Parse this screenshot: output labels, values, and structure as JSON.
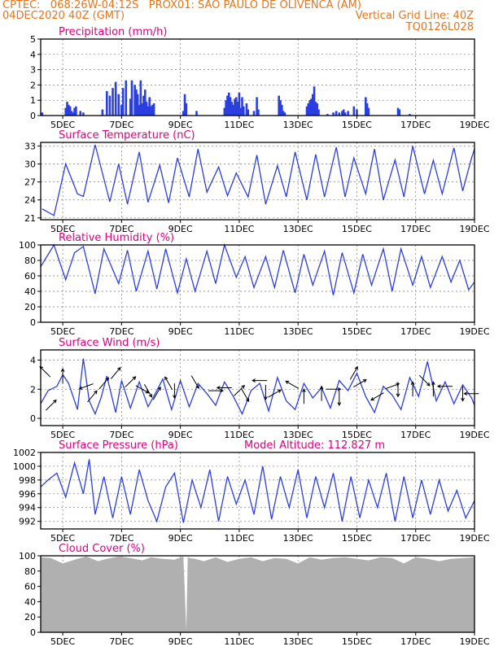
{
  "header": {
    "left_line1": "CPTEC:   068:26W-04:12S   PROX01: SAO PAULO DE OLIVENCA (AM)",
    "left_line2": "04DEC2020 40Z (GMT)",
    "right_line2": "Vertical Grid Line: 40Z",
    "right_line3": "TQ0126L028"
  },
  "colors": {
    "header_text": "#e8751a",
    "panel_title": "#e0007a",
    "series_line": "#2a3fe0",
    "bars": "#2a3fe0",
    "cloud_fill": "#b0b0b0",
    "wind_arrows": "#000000",
    "grid": "#7a7a7a"
  },
  "x_axis": {
    "tick_labels": [
      "5DEC",
      "7DEC",
      "9DEC",
      "11DEC",
      "13DEC",
      "15DEC",
      "17DEC",
      "19DEC"
    ],
    "tick_days": [
      5,
      7,
      9,
      11,
      13,
      15,
      17,
      19
    ],
    "range_days": [
      4.25,
      19.0
    ]
  },
  "chart_data": [
    {
      "type": "bar",
      "title": "Precipitation (mm/h)",
      "ylim": [
        0,
        5
      ],
      "yticks": [
        0,
        1,
        2,
        3,
        4,
        5
      ],
      "grid": true,
      "days": [
        4.3,
        5.1,
        5.15,
        5.2,
        5.25,
        5.3,
        5.35,
        5.4,
        5.45,
        5.6,
        5.7,
        6.35,
        6.5,
        6.6,
        6.7,
        6.8,
        6.9,
        7.0,
        7.05,
        7.15,
        7.3,
        7.35,
        7.45,
        7.5,
        7.55,
        7.6,
        7.65,
        7.7,
        7.75,
        7.8,
        7.85,
        7.9,
        7.95,
        8.0,
        8.05,
        8.1,
        9.1,
        9.15,
        9.2,
        9.55,
        10.5,
        10.55,
        10.6,
        10.65,
        10.7,
        10.75,
        10.8,
        10.85,
        10.9,
        10.95,
        11.0,
        11.05,
        11.1,
        11.15,
        11.25,
        11.3,
        11.5,
        11.6,
        11.65,
        12.35,
        12.4,
        12.45,
        12.5,
        12.55,
        13.3,
        13.35,
        13.4,
        13.45,
        13.5,
        13.55,
        13.6,
        13.65,
        13.7,
        14.0,
        14.2,
        14.3,
        14.4,
        14.5,
        14.55,
        14.6,
        14.7,
        14.9,
        15.0,
        15.3,
        15.35,
        15.4,
        16.4,
        16.45,
        16.8
      ],
      "values": [
        0.2,
        0.5,
        0.9,
        0.7,
        0.6,
        0.3,
        0.2,
        0.5,
        0.6,
        0.3,
        0.2,
        0.4,
        1.6,
        1.3,
        1.8,
        2.2,
        1.4,
        0.7,
        1.8,
        2.3,
        1.1,
        2.3,
        2.0,
        1.7,
        1.4,
        0.7,
        2.3,
        0.8,
        1.3,
        1.7,
        0.9,
        0.6,
        1.2,
        0.6,
        0.7,
        0.8,
        0.3,
        1.4,
        0.8,
        0.3,
        0.5,
        1.0,
        1.3,
        1.5,
        1.2,
        0.9,
        0.7,
        1.1,
        1.2,
        0.9,
        1.5,
        0.5,
        1.2,
        0.6,
        0.8,
        0.4,
        0.3,
        1.2,
        0.4,
        1.3,
        1.0,
        0.7,
        0.3,
        0.2,
        0.6,
        0.8,
        1.0,
        1.1,
        1.4,
        1.9,
        0.9,
        0.8,
        0.4,
        0.1,
        0.2,
        0.3,
        0.2,
        0.3,
        0.4,
        0.2,
        0.3,
        0.6,
        0.4,
        1.2,
        0.8,
        0.5,
        0.5,
        0.4,
        0.1
      ]
    },
    {
      "type": "line",
      "title": "Surface Temperature (nC)",
      "ylim": [
        20.7,
        33.6
      ],
      "yticks": [
        21,
        24,
        27,
        30,
        33
      ],
      "grid": true,
      "x": [
        4.3,
        4.7,
        5.1,
        5.5,
        5.7,
        6.1,
        6.6,
        6.9,
        7.2,
        7.6,
        7.9,
        8.3,
        8.6,
        8.9,
        9.3,
        9.6,
        9.9,
        10.3,
        10.6,
        10.9,
        11.3,
        11.6,
        11.9,
        12.3,
        12.6,
        12.9,
        13.3,
        13.6,
        13.9,
        14.3,
        14.6,
        14.9,
        15.3,
        15.6,
        15.9,
        16.3,
        16.6,
        16.9,
        17.3,
        17.6,
        17.9,
        18.3,
        18.6,
        18.9,
        19.0
      ],
      "y": [
        22.5,
        21.4,
        30.0,
        25.0,
        24.6,
        33.2,
        23.7,
        30.0,
        23.3,
        32.0,
        23.6,
        29.8,
        23.5,
        31.0,
        24.5,
        32.5,
        25.3,
        29.5,
        24.7,
        28.5,
        24.5,
        31.5,
        23.3,
        29.7,
        24.5,
        32.0,
        24.0,
        31.6,
        24.5,
        32.8,
        24.5,
        31.0,
        25.0,
        32.5,
        24.0,
        30.7,
        24.5,
        33.0,
        25.0,
        30.6,
        25.0,
        32.7,
        25.5,
        31.0,
        32.5
      ]
    },
    {
      "type": "line",
      "title": "Relative Humidity (%)",
      "ylim": [
        0,
        100
      ],
      "yticks": [
        0,
        20,
        40,
        60,
        80,
        100
      ],
      "grid": true,
      "x": [
        4.25,
        4.7,
        5.1,
        5.4,
        5.7,
        6.1,
        6.4,
        6.9,
        7.2,
        7.5,
        7.9,
        8.2,
        8.5,
        8.9,
        9.2,
        9.5,
        9.9,
        10.2,
        10.5,
        10.9,
        11.2,
        11.5,
        11.9,
        12.2,
        12.5,
        12.9,
        13.2,
        13.5,
        13.9,
        14.2,
        14.5,
        14.9,
        15.2,
        15.5,
        15.9,
        16.2,
        16.5,
        16.9,
        17.2,
        17.5,
        17.9,
        18.2,
        18.5,
        18.8,
        19.0
      ],
      "y": [
        72,
        100,
        55,
        90,
        98,
        37,
        95,
        50,
        93,
        40,
        92,
        43,
        95,
        38,
        82,
        40,
        92,
        50,
        100,
        58,
        85,
        45,
        85,
        45,
        93,
        38,
        88,
        48,
        92,
        35,
        90,
        38,
        88,
        48,
        95,
        40,
        95,
        48,
        85,
        45,
        85,
        52,
        80,
        42,
        52
      ]
    },
    {
      "type": "line",
      "title": "Surface Wind (m/s)",
      "ylim": [
        -0.5,
        4.7
      ],
      "yticks": [
        0,
        2,
        4
      ],
      "grid": true,
      "x": [
        4.25,
        4.5,
        4.8,
        5.0,
        5.2,
        5.5,
        5.7,
        5.9,
        6.1,
        6.3,
        6.5,
        6.8,
        7.0,
        7.3,
        7.6,
        7.9,
        8.2,
        8.4,
        8.7,
        9.0,
        9.3,
        9.6,
        9.9,
        10.2,
        10.5,
        10.8,
        11.1,
        11.4,
        11.7,
        12.0,
        12.3,
        12.6,
        12.9,
        13.2,
        13.5,
        13.8,
        14.1,
        14.4,
        14.7,
        15.0,
        15.3,
        15.6,
        15.9,
        16.2,
        16.5,
        16.8,
        17.1,
        17.4,
        17.7,
        18.0,
        18.3,
        18.6,
        18.9,
        19.0
      ],
      "y": [
        1.0,
        1.9,
        2.2,
        3.0,
        2.4,
        0.6,
        4.1,
        1.2,
        0.3,
        1.4,
        2.9,
        0.4,
        2.6,
        0.7,
        2.5,
        0.8,
        1.9,
        2.7,
        0.6,
        2.6,
        0.8,
        2.4,
        1.7,
        0.9,
        2.5,
        1.5,
        0.3,
        1.9,
        2.4,
        0.5,
        2.8,
        1.2,
        0.6,
        2.4,
        1.4,
        2.1,
        0.7,
        2.6,
        1.9,
        3.1,
        1.5,
        0.4,
        2.2,
        1.6,
        0.6,
        2.8,
        1.5,
        3.9,
        1.2,
        2.5,
        1.0,
        2.3,
        1.4,
        0.9
      ],
      "arrows": [
        {
          "day": 4.4,
          "value": 3.2,
          "dir_deg": 135
        },
        {
          "day": 4.6,
          "value": 0.9,
          "dir_deg": 45
        },
        {
          "day": 5.0,
          "value": 2.9,
          "dir_deg": 90
        },
        {
          "day": 5.8,
          "value": 2.2,
          "dir_deg": 200
        },
        {
          "day": 6.0,
          "value": 1.5,
          "dir_deg": 50
        },
        {
          "day": 6.4,
          "value": 2.4,
          "dir_deg": 50
        },
        {
          "day": 6.8,
          "value": 3.1,
          "dir_deg": 50
        },
        {
          "day": 7.3,
          "value": 2.5,
          "dir_deg": 45
        },
        {
          "day": 7.7,
          "value": 2.0,
          "dir_deg": 330
        },
        {
          "day": 7.9,
          "value": 1.9,
          "dir_deg": 300
        },
        {
          "day": 8.2,
          "value": 1.7,
          "dir_deg": 60
        },
        {
          "day": 8.6,
          "value": 2.4,
          "dir_deg": 120
        },
        {
          "day": 8.8,
          "value": 1.9,
          "dir_deg": 270
        },
        {
          "day": 9.5,
          "value": 2.5,
          "dir_deg": 300
        },
        {
          "day": 10.2,
          "value": 1.9,
          "dir_deg": 0
        },
        {
          "day": 10.5,
          "value": 2.1,
          "dir_deg": 180
        },
        {
          "day": 11.0,
          "value": 1.9,
          "dir_deg": 45
        },
        {
          "day": 11.2,
          "value": 1.6,
          "dir_deg": 300
        },
        {
          "day": 11.7,
          "value": 2.6,
          "dir_deg": 180
        },
        {
          "day": 11.9,
          "value": 1.8,
          "dir_deg": 270
        },
        {
          "day": 12.2,
          "value": 1.7,
          "dir_deg": 30
        },
        {
          "day": 12.8,
          "value": 2.3,
          "dir_deg": 150
        },
        {
          "day": 13.2,
          "value": 1.5,
          "dir_deg": 90
        },
        {
          "day": 13.8,
          "value": 1.7,
          "dir_deg": 90
        },
        {
          "day": 14.2,
          "value": 2.0,
          "dir_deg": 0
        },
        {
          "day": 14.4,
          "value": 1.4,
          "dir_deg": 270
        },
        {
          "day": 14.9,
          "value": 3.1,
          "dir_deg": 60
        },
        {
          "day": 15.1,
          "value": 2.4,
          "dir_deg": 30
        },
        {
          "day": 15.7,
          "value": 1.5,
          "dir_deg": 210
        },
        {
          "day": 16.2,
          "value": 2.2,
          "dir_deg": 20
        },
        {
          "day": 16.4,
          "value": 2.0,
          "dir_deg": 270
        },
        {
          "day": 16.9,
          "value": 2.0,
          "dir_deg": 90
        },
        {
          "day": 17.3,
          "value": 2.6,
          "dir_deg": 315
        },
        {
          "day": 17.6,
          "value": 2.0,
          "dir_deg": 90
        },
        {
          "day": 18.0,
          "value": 2.2,
          "dir_deg": 180
        },
        {
          "day": 18.6,
          "value": 1.7,
          "dir_deg": 270
        },
        {
          "day": 18.9,
          "value": 1.7,
          "dir_deg": 180
        }
      ]
    },
    {
      "type": "line",
      "title": "Surface Pressure (hPa)",
      "annotation": "Model Altitude: 112.827 m",
      "ylim": [
        990.9,
        1002.0
      ],
      "yticks": [
        992,
        994,
        996,
        998,
        1000,
        1002
      ],
      "grid": true,
      "x": [
        4.25,
        4.5,
        4.8,
        5.1,
        5.4,
        5.7,
        5.9,
        6.1,
        6.4,
        6.7,
        7.0,
        7.3,
        7.6,
        7.9,
        8.2,
        8.5,
        8.8,
        9.1,
        9.4,
        9.7,
        10.0,
        10.3,
        10.6,
        10.9,
        11.2,
        11.5,
        11.8,
        12.1,
        12.4,
        12.7,
        13.0,
        13.3,
        13.6,
        13.9,
        14.2,
        14.5,
        14.8,
        15.1,
        15.4,
        15.7,
        16.0,
        16.3,
        16.6,
        16.9,
        17.2,
        17.5,
        17.8,
        18.1,
        18.4,
        18.7,
        19.0
      ],
      "y": [
        997.0,
        998.0,
        999.0,
        995.5,
        1000.5,
        996.0,
        1001.0,
        993.0,
        998.5,
        992.5,
        998.5,
        993.0,
        999.5,
        995.0,
        992.0,
        997.0,
        999.0,
        991.8,
        998.0,
        994.0,
        999.5,
        992.0,
        998.5,
        994.5,
        998.0,
        993.0,
        1000.0,
        992.3,
        998.5,
        994.0,
        999.5,
        992.5,
        998.5,
        994.0,
        999.0,
        992.0,
        998.5,
        992.5,
        998.0,
        994.0,
        999.0,
        992.0,
        998.5,
        992.5,
        998.0,
        993.0,
        998.0,
        993.5,
        996.5,
        992.5,
        995.0
      ]
    },
    {
      "type": "area",
      "title": "Cloud Cover (%)",
      "ylim": [
        0,
        100
      ],
      "yticks": [
        0,
        20,
        40,
        60,
        80,
        100
      ],
      "grid": true,
      "x": [
        4.25,
        4.6,
        5.0,
        5.5,
        5.8,
        6.2,
        6.5,
        6.9,
        7.3,
        7.7,
        8.0,
        8.4,
        8.8,
        9.1,
        9.2,
        9.25,
        9.3,
        9.5,
        9.8,
        10.2,
        10.6,
        11.0,
        11.4,
        11.8,
        12.2,
        12.6,
        13.0,
        13.4,
        13.8,
        14.2,
        14.6,
        15.0,
        15.4,
        15.8,
        16.2,
        16.6,
        17.0,
        17.4,
        17.8,
        18.2,
        18.6,
        19.0
      ],
      "y": [
        98,
        97,
        90,
        96,
        99,
        93,
        96,
        99,
        97,
        94,
        98,
        96,
        95,
        99,
        3,
        99,
        97,
        96,
        93,
        98,
        92,
        96,
        98,
        93,
        97,
        96,
        90,
        98,
        95,
        97,
        98,
        96,
        94,
        98,
        97,
        90,
        98,
        96,
        93,
        96,
        97,
        98
      ]
    }
  ]
}
